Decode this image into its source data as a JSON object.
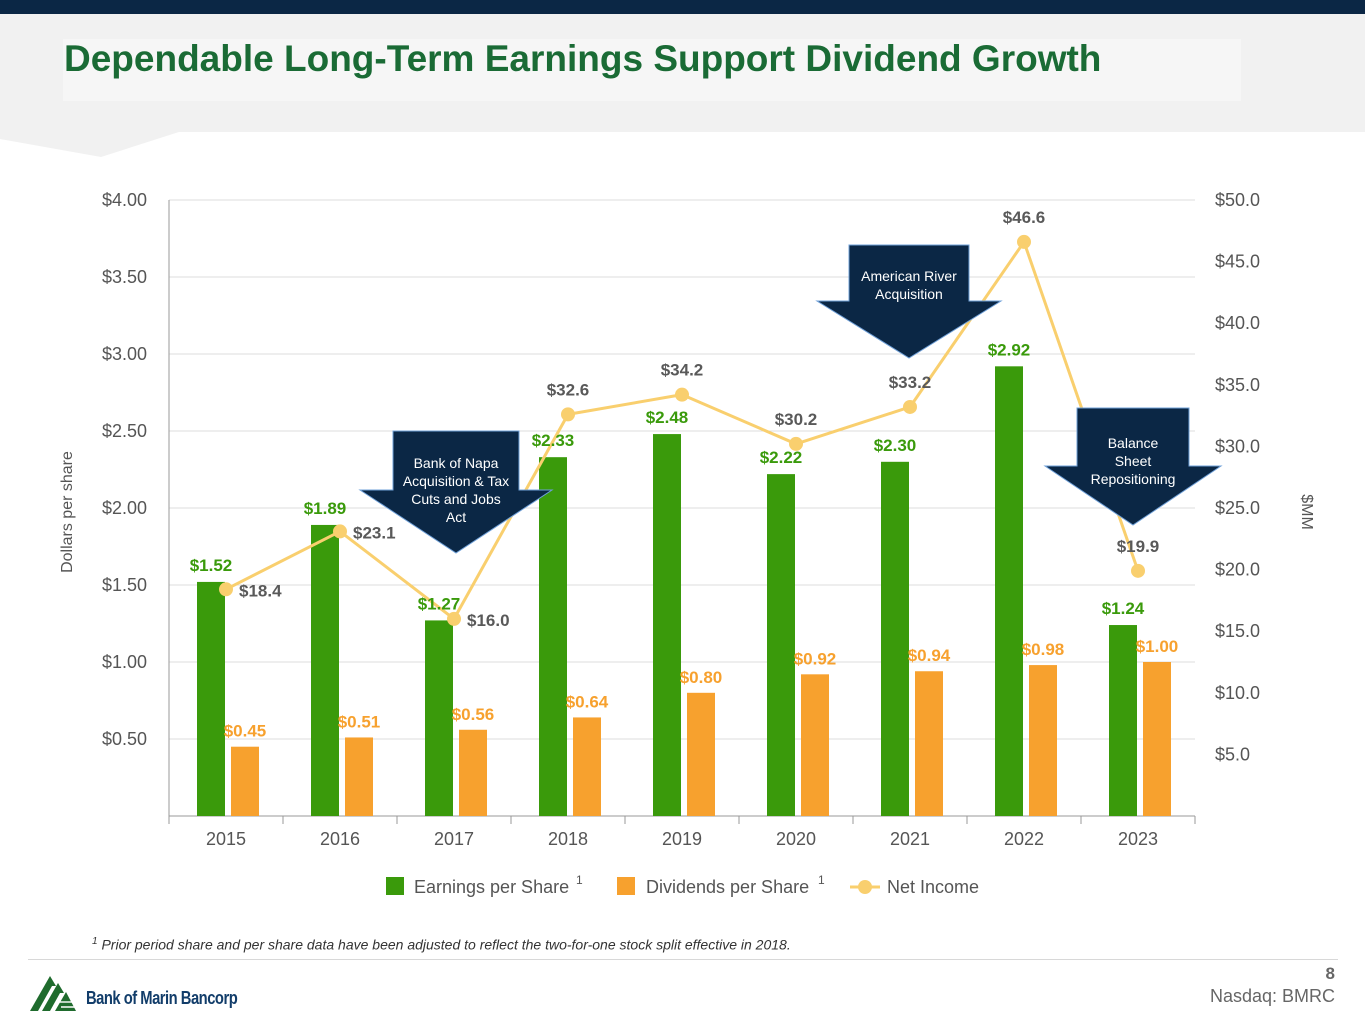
{
  "slide": {
    "title": "Dependable Long-Term Earnings Support Dividend Growth",
    "footnote_marker": "1",
    "footnote_text": " Prior period share and per share data have been adjusted to reflect the two-for-one stock split effective in 2018.",
    "page_number": "8",
    "ticker": "Nasdaq: BMRC",
    "logo_text": "Bank of Marin Bancorp"
  },
  "chart_data": {
    "type": "bar",
    "categories": [
      "2015",
      "2016",
      "2017",
      "2018",
      "2019",
      "2020",
      "2021",
      "2022",
      "2023"
    ],
    "series": [
      {
        "name": "Earnings per Share",
        "superscript": "1",
        "axis": "left",
        "kind": "bar",
        "color": "#3a9a0b",
        "values": [
          1.52,
          1.89,
          1.27,
          2.33,
          2.48,
          2.22,
          2.3,
          2.92,
          1.24
        ],
        "labels": [
          "$1.52",
          "$1.89",
          "$1.27",
          "$2.33",
          "$2.48",
          "$2.22",
          "$2.30",
          "$2.92",
          "$1.24"
        ]
      },
      {
        "name": "Dividends per Share",
        "superscript": "1",
        "axis": "left",
        "kind": "bar",
        "color": "#f7a12e",
        "values": [
          0.45,
          0.51,
          0.56,
          0.64,
          0.8,
          0.92,
          0.94,
          0.98,
          1.0
        ],
        "labels": [
          "$0.45",
          "$0.51",
          "$0.56",
          "$0.64",
          "$0.80",
          "$0.92",
          "$0.94",
          "$0.98",
          "$1.00"
        ]
      },
      {
        "name": "Net Income",
        "superscript": "",
        "axis": "right",
        "kind": "line",
        "color": "#f9cf6e",
        "values": [
          18.4,
          23.1,
          16.0,
          32.6,
          34.2,
          30.2,
          33.2,
          46.6,
          19.9
        ],
        "labels": [
          "$18.4",
          "$23.1",
          "$16.0",
          "$32.6",
          "$34.2",
          "$30.2",
          "$33.2",
          "$46.6",
          "$19.9"
        ]
      }
    ],
    "ylabel": "Dollars per share",
    "y2label": "$MM",
    "ylim": [
      0,
      4
    ],
    "y2lim": [
      0,
      50
    ],
    "yticks": [
      0.5,
      1.0,
      1.5,
      2.0,
      2.5,
      3.0,
      3.5,
      4.0
    ],
    "ytick_labels": [
      "$0.50",
      "$1.00",
      "$1.50",
      "$2.00",
      "$2.50",
      "$3.00",
      "$3.50",
      "$4.00"
    ],
    "y2ticks": [
      5,
      10,
      15,
      20,
      25,
      30,
      35,
      40,
      45,
      50
    ],
    "y2tick_labels": [
      "$5.0",
      "$10.0",
      "$15.0",
      "$20.0",
      "$25.0",
      "$30.0",
      "$35.0",
      "$40.0",
      "$45.0",
      "$50.0"
    ],
    "grid": true,
    "legend_position": "bottom",
    "annotations": [
      {
        "category": "2017",
        "lines": [
          "Bank of Napa",
          "Acquisition & Tax",
          "Cuts and Jobs",
          "Act"
        ]
      },
      {
        "category": "2021",
        "lines": [
          "American River",
          "Acquisition"
        ]
      },
      {
        "category": "2023",
        "lines": [
          "Balance",
          "Sheet",
          "Repositioning"
        ]
      }
    ],
    "colors": {
      "axis_text": "#555555",
      "label_dark": "#595959",
      "callout_fill": "#0b2745",
      "grid": "#dddddd"
    }
  }
}
